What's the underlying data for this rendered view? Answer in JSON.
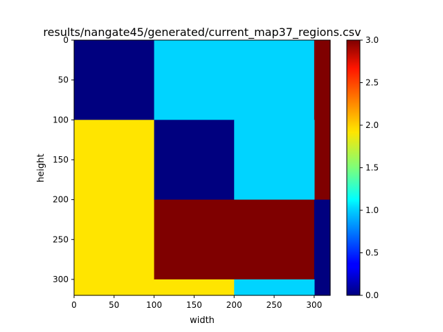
{
  "chart_data": {
    "type": "heatmap",
    "title": "results/nangate45/generated/current_map37_regions.csv",
    "xlabel": "width",
    "ylabel": "height",
    "xlim": [
      0,
      320
    ],
    "ylim": [
      320,
      0
    ],
    "x_ticks": [
      0,
      50,
      100,
      150,
      200,
      250,
      300
    ],
    "y_ticks": [
      0,
      50,
      100,
      150,
      200,
      250,
      300
    ],
    "colormap": "jet",
    "colorbar": {
      "range": [
        0.0,
        3.0
      ],
      "ticks": [
        "0.0",
        "0.5",
        "1.0",
        "1.5",
        "2.0",
        "2.5",
        "3.0"
      ]
    },
    "regions": [
      {
        "x": [
          0,
          100
        ],
        "y": [
          0,
          100
        ],
        "value": 0
      },
      {
        "x": [
          100,
          300
        ],
        "y": [
          0,
          100
        ],
        "value": 1
      },
      {
        "x": [
          300,
          320
        ],
        "y": [
          0,
          200
        ],
        "value": 3
      },
      {
        "x": [
          0,
          100
        ],
        "y": [
          100,
          320
        ],
        "value": 2
      },
      {
        "x": [
          100,
          200
        ],
        "y": [
          100,
          200
        ],
        "value": 0
      },
      {
        "x": [
          200,
          300
        ],
        "y": [
          100,
          200
        ],
        "value": 1
      },
      {
        "x": [
          100,
          300
        ],
        "y": [
          200,
          300
        ],
        "value": 3
      },
      {
        "x": [
          300,
          320
        ],
        "y": [
          200,
          320
        ],
        "value": 0
      },
      {
        "x": [
          100,
          200
        ],
        "y": [
          300,
          320
        ],
        "value": 2
      },
      {
        "x": [
          200,
          300
        ],
        "y": [
          300,
          320
        ],
        "value": 1
      }
    ],
    "colors": {
      "0": "#00007f",
      "1": "#00d4ff",
      "2": "#ffe500",
      "3": "#7f0000"
    },
    "grid": false,
    "legend": "colorbar-right"
  }
}
